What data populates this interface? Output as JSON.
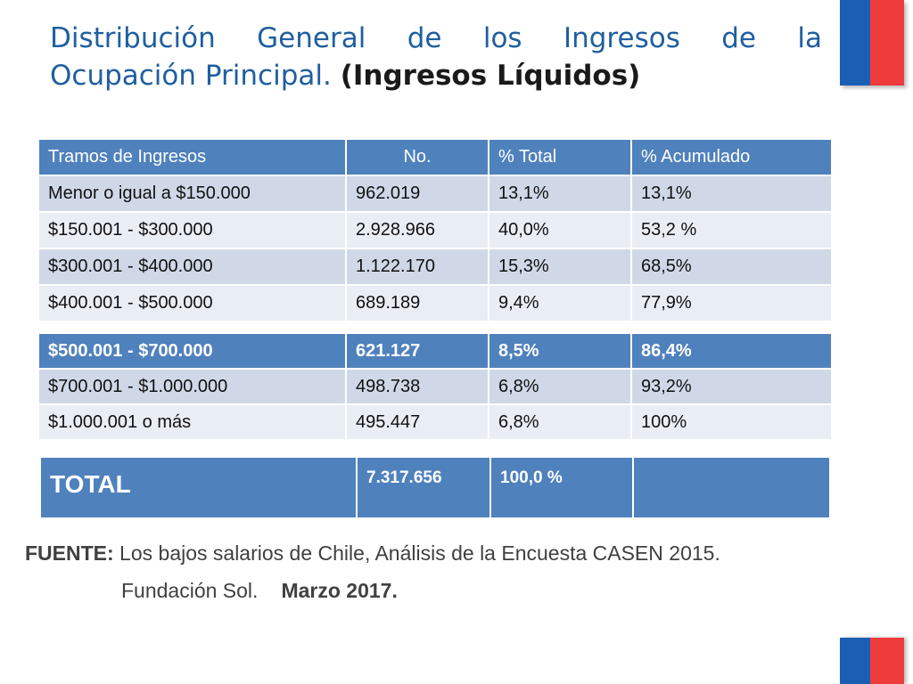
{
  "title": {
    "line1_words": [
      "Distribución",
      "General",
      "de",
      "los",
      "Ingresos",
      "de",
      "la"
    ],
    "line2_normal": "Ocupación Principal.",
    "line2_bold": "(Ingresos Líquidos)"
  },
  "table": {
    "headers": [
      "Tramos de Ingresos",
      "No.",
      "%   Total",
      "% Acumulado"
    ],
    "rows": [
      [
        "Menor o igual a $150.000",
        "962.019",
        "13,1%",
        "13,1%"
      ],
      [
        "$150.001 - $300.000",
        "2.928.966",
        "40,0%",
        "53,2 %"
      ],
      [
        "$300.001 - $400.000",
        "1.122.170",
        "15,3%",
        "68,5%"
      ],
      [
        "$400.001 - $500.000",
        "689.189",
        "9,4%",
        "77,9%"
      ]
    ],
    "highlight_row": [
      "$500.001 - $700.000",
      "621.127",
      "8,5%",
      "86,4%"
    ],
    "rows2": [
      [
        "$700.001 - $1.000.000",
        "498.738",
        "6,8%",
        "93,2%"
      ],
      [
        "$1.000.001 o más",
        "495.447",
        "6,8%",
        "100%"
      ]
    ],
    "total": {
      "label": "TOTAL",
      "number": "7.317.656",
      "percent": "100,0 %",
      "accum": ""
    }
  },
  "source": {
    "label": "FUENTE:",
    "text": " Los bajos salarios de Chile, Análisis de la Encuesta CASEN 2015.",
    "org": "Fundación Sol.",
    "date": "Marzo 2017."
  },
  "colors": {
    "title": "#1f5fa0",
    "table_header": "#4f81bd",
    "row_dark": "#d0d8e8",
    "row_light": "#e9edf4",
    "flag_blue": "#1a5fb4",
    "flag_red": "#ef3b3b"
  }
}
